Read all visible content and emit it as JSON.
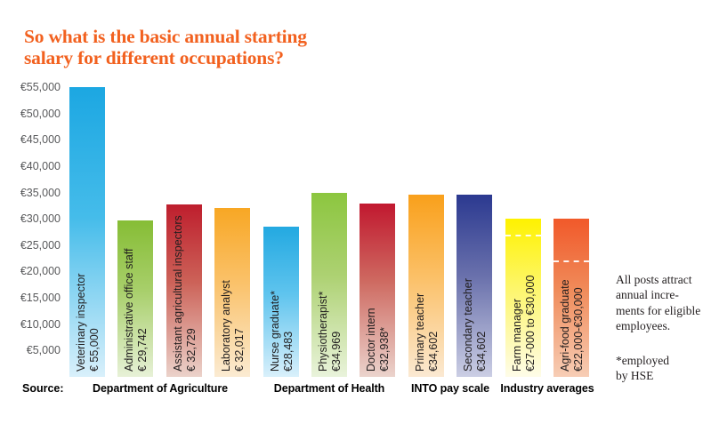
{
  "title": {
    "text": "So what is the basic annual starting\nsalary for different occupations?",
    "color": "#F2611F"
  },
  "footer": {
    "source_label": "Source:"
  },
  "notes": {
    "increments": "All posts attract\nannual incre-\nments for eligible\nemployees.",
    "hse": "*employed\nby HSE"
  },
  "colors": {
    "title_orange": "#F2611F",
    "axis_gray": "#58595B",
    "bar_text": "#211E1F",
    "group_label_black": "#000000",
    "dashed_line": "#FFFFFF"
  },
  "chart_data": {
    "type": "bar",
    "title": "So what is the basic annual starting salary for different occupations?",
    "currency": "EUR",
    "ylim": [
      0,
      55000
    ],
    "grid": false,
    "legend": "none",
    "y_tick_values": [
      55000,
      50000,
      45000,
      40000,
      35000,
      30000,
      25000,
      20000,
      15000,
      10000,
      5000
    ],
    "y_tick_labels": [
      "€55,000",
      "€50,000",
      "€45,000",
      "€40,000",
      "€35,000",
      "€30,000",
      "€25,000",
      "€20,000",
      "€15,000",
      "€10,000",
      "€5,000"
    ],
    "bars": [
      {
        "name": "Veterinary inspector",
        "value_label": "€ 55,000",
        "value": 55000,
        "group": "Department of Agriculture",
        "colors": [
          "#1CA7E2",
          "#45BCEA",
          "#D9F0FB"
        ]
      },
      {
        "name": "Administrative office staff",
        "value_label": "€ 29,742",
        "value": 29742,
        "group": "Department of Agriculture",
        "colors": [
          "#86BD35",
          "#A8CF6B",
          "#E7F1D7"
        ]
      },
      {
        "name": "Assistant agricultural inspectors",
        "value_label": "€ 32,729",
        "value": 32729,
        "group": "Department of Agriculture",
        "colors": [
          "#BE1E2D",
          "#CC6258",
          "#EBD2CA"
        ]
      },
      {
        "name": "Laboratory analyst",
        "value_label": "€ 32,017",
        "value": 32017,
        "group": "Department of Agriculture",
        "colors": [
          "#F8A724",
          "#FAC26B",
          "#FBEBD2"
        ]
      },
      {
        "name": "Nurse graduate*",
        "value_label": "€28,483",
        "value": 28483,
        "group": "Department of Health",
        "colors": [
          "#23A9E1",
          "#5FC4EE",
          "#D9F0FB"
        ]
      },
      {
        "name": "Physiotherapist*",
        "value_label": "€34,969",
        "value": 34969,
        "group": "Department of Health",
        "colors": [
          "#8CC63F",
          "#ADD172",
          "#E9F3DB"
        ]
      },
      {
        "name": "Doctor intern",
        "value_label": "€32,938*",
        "value": 32938,
        "group": "Department of Health",
        "colors": [
          "#C1182F",
          "#CE6A61",
          "#EBD3CC"
        ]
      },
      {
        "name": "Primary teacher",
        "value_label": "€34,602",
        "value": 34602,
        "group": "INTO pay scale",
        "colors": [
          "#F9A01B",
          "#FBC067",
          "#FBE9D2"
        ]
      },
      {
        "name": "Secondary teacher",
        "value_label": "€34,602",
        "value": 34602,
        "group": "INTO pay scale",
        "colors": [
          "#2B3990",
          "#6A71AC",
          "#CBCEE4"
        ]
      },
      {
        "name": "Farm manager",
        "value_label": "€27-000 to €30,000",
        "value": 30000,
        "range_low": 27000,
        "dash_at": 27000,
        "group": "Industry averages",
        "colors": [
          "#FEF200",
          "#FDF66E",
          "#FEFCE8"
        ]
      },
      {
        "name": "Agri-food graduate",
        "value_label": "€22,000-€30,000",
        "value": 30000,
        "range_low": 22000,
        "dash_at": 22000,
        "group": "Industry averages",
        "colors": [
          "#F1592A",
          "#F08B5A",
          "#F7CDB5"
        ]
      }
    ],
    "groups": [
      {
        "label": "Department of Agriculture",
        "from": 0,
        "to": 3
      },
      {
        "label": "Department of Health",
        "from": 4,
        "to": 6
      },
      {
        "label": "INTO pay scale",
        "from": 7,
        "to": 8
      },
      {
        "label": "Industry averages",
        "from": 9,
        "to": 10
      }
    ]
  }
}
